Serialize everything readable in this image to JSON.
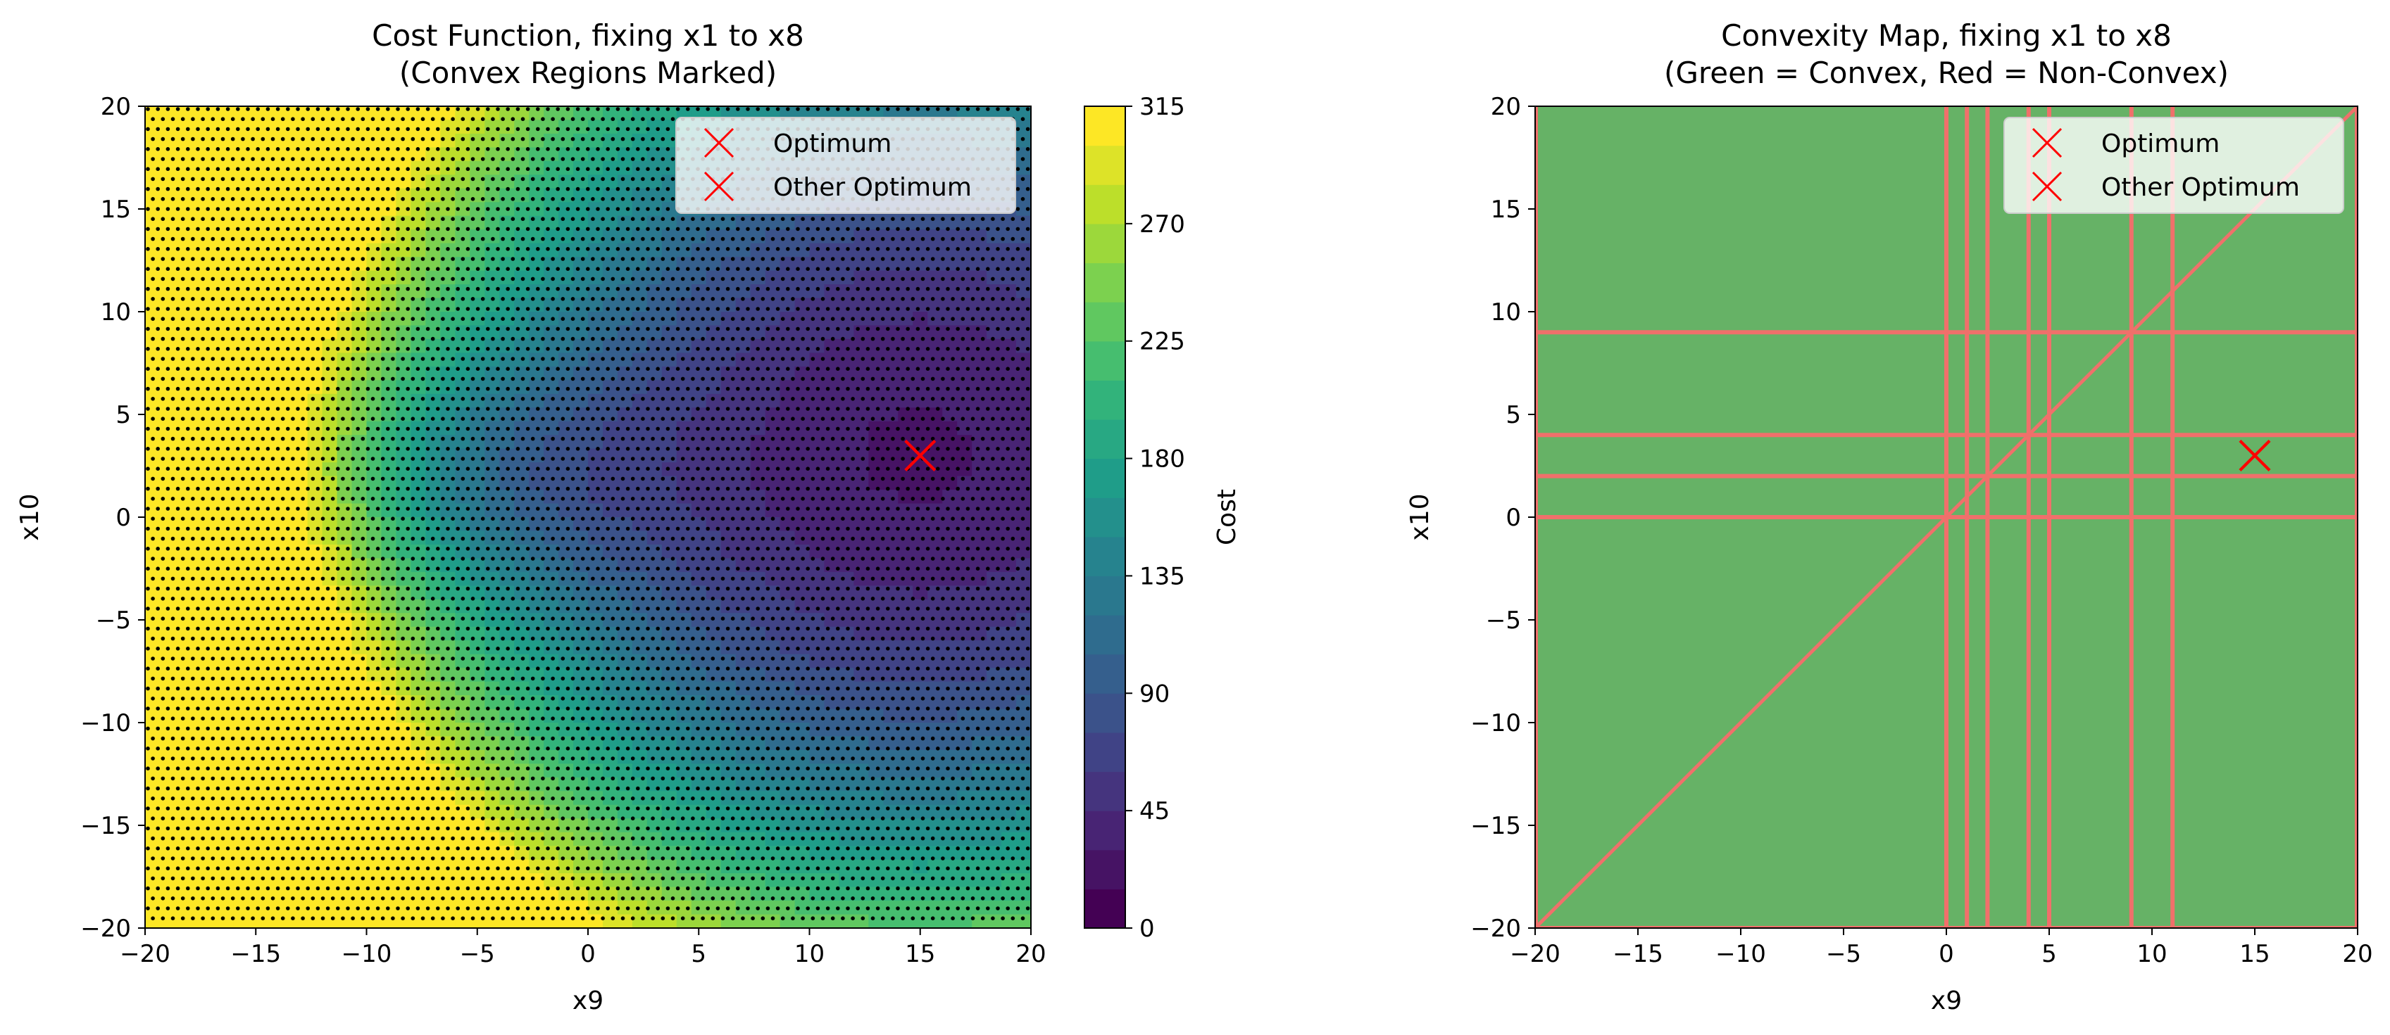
{
  "chart_data": [
    {
      "type": "heatmap",
      "title": "Cost Function, fixing x1 to x8",
      "subtitle": "(Convex Regions Marked)",
      "xlabel": "x9",
      "ylabel": "x10",
      "xlim": [
        -20,
        20
      ],
      "ylim": [
        -20,
        20
      ],
      "xticks": [
        -20,
        -15,
        -10,
        -5,
        0,
        5,
        10,
        15,
        20
      ],
      "yticks": [
        -20,
        -15,
        -10,
        -5,
        0,
        5,
        10,
        15,
        20
      ],
      "grid": false,
      "colormap": "viridis",
      "colorbar": {
        "label": "Cost",
        "range": [
          0,
          315
        ],
        "ticks": [
          0,
          45,
          90,
          135,
          180,
          225,
          270,
          315
        ],
        "levels": 21
      },
      "stipple": "convex regions marked with black dots",
      "legend": {
        "placement": "top-right",
        "entries": [
          "Optimum",
          "Other Optimum"
        ]
      },
      "markers": [
        {
          "name": "Optimum",
          "x": 15,
          "y": 3,
          "symbol": "x",
          "color": "#ff0000"
        },
        {
          "name": "Other Optimum",
          "x": 15,
          "y": 3,
          "symbol": "x",
          "color": "#ff0000"
        }
      ]
    },
    {
      "type": "heatmap",
      "title": "Convexity Map, fixing x1 to x8",
      "subtitle": "(Green = Convex, Red = Non-Convex)",
      "xlabel": "x9",
      "ylabel": "x10",
      "xlim": [
        -20,
        20
      ],
      "ylim": [
        -20,
        20
      ],
      "xticks": [
        -20,
        -15,
        -10,
        -5,
        0,
        5,
        10,
        15,
        20
      ],
      "yticks": [
        -20,
        -15,
        -10,
        -5,
        0,
        5,
        10,
        15,
        20
      ],
      "grid": false,
      "colors": {
        "convex": "#66b266",
        "non_convex": "#f0706b"
      },
      "non_convex_lines": {
        "x9_equals": [
          0,
          1,
          2,
          4,
          5,
          9,
          11
        ],
        "x10_equals": [
          0,
          2,
          4,
          9
        ],
        "diagonal_x10_equals_x9": true
      },
      "legend": {
        "placement": "top-right",
        "entries": [
          "Optimum",
          "Other Optimum"
        ]
      },
      "markers": [
        {
          "name": "Optimum",
          "x": 15,
          "y": 3,
          "symbol": "x",
          "color": "#ff0000"
        },
        {
          "name": "Other Optimum",
          "x": 15,
          "y": 3,
          "symbol": "x",
          "color": "#ff0000"
        }
      ]
    }
  ]
}
